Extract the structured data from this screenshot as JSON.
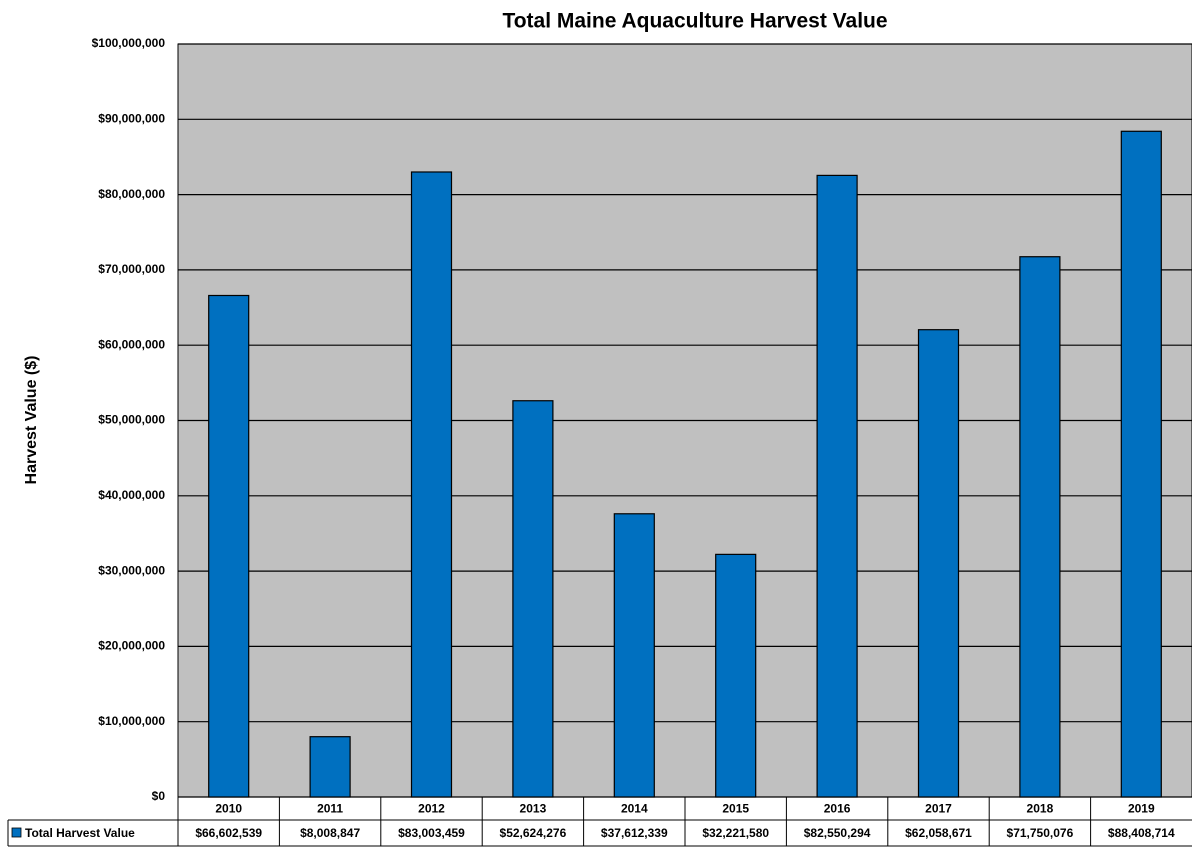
{
  "chart_data": {
    "type": "bar",
    "title": "Total Maine Aquaculture Harvest Value",
    "y_label": "Harvest Value ($)",
    "categories": [
      "2010",
      "2011",
      "2012",
      "2013",
      "2014",
      "2015",
      "2016",
      "2017",
      "2018",
      "2019"
    ],
    "series": [
      {
        "name": "Total Harvest Value",
        "color": "#0070c0",
        "values": [
          66602539,
          8008847,
          83003459,
          52624276,
          37612339,
          32221580,
          82550294,
          62058671,
          71750076,
          88408714
        ],
        "value_labels": [
          "$66,602,539",
          "$8,008,847",
          "$83,003,459",
          "$52,624,276",
          "$37,612,339",
          "$32,221,580",
          "$82,550,294",
          "$62,058,671",
          "$71,750,076",
          "$88,408,714"
        ]
      }
    ],
    "ylim": [
      0,
      100000000
    ],
    "yticks": [
      {
        "value": 0,
        "label": "$0"
      },
      {
        "value": 10000000,
        "label": "$10,000,000"
      },
      {
        "value": 20000000,
        "label": "$20,000,000"
      },
      {
        "value": 30000000,
        "label": "$30,000,000"
      },
      {
        "value": 40000000,
        "label": "$40,000,000"
      },
      {
        "value": 50000000,
        "label": "$50,000,000"
      },
      {
        "value": 60000000,
        "label": "$60,000,000"
      },
      {
        "value": 70000000,
        "label": "$70,000,000"
      },
      {
        "value": 80000000,
        "label": "$80,000,000"
      },
      {
        "value": 90000000,
        "label": "$90,000,000"
      },
      {
        "value": 100000000,
        "label": "$100,000,000"
      }
    ],
    "grid": true,
    "plot_background": "#c0c0c0"
  }
}
